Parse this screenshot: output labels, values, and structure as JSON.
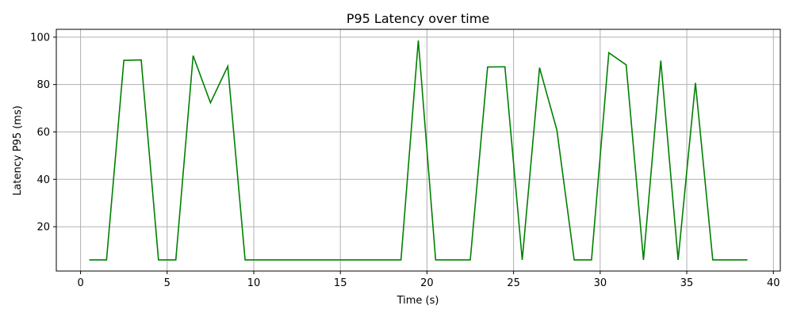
{
  "chart_data": {
    "type": "line",
    "title": "P95 Latency over time",
    "xlabel": "Time (s)",
    "ylabel": "Latency P95 (ms)",
    "xlim": [
      -1.4,
      40.4
    ],
    "ylim": [
      1.3,
      103.3
    ],
    "xticks": [
      0,
      5,
      10,
      15,
      20,
      25,
      30,
      35,
      40
    ],
    "yticks": [
      20,
      40,
      60,
      80,
      100
    ],
    "grid": true,
    "series": [
      {
        "color": "#008000",
        "x": [
          0.5,
          1.5,
          2.5,
          3.5,
          4.5,
          5.5,
          6.5,
          7.5,
          8.5,
          9.5,
          10.5,
          11.5,
          12.5,
          13.5,
          14.5,
          15.5,
          16.5,
          17.5,
          18.5,
          19.5,
          20.5,
          21.5,
          22.5,
          23.5,
          24.5,
          25.5,
          26.5,
          27.5,
          28.5,
          29.5,
          30.5,
          31.5,
          32.5,
          33.5,
          34.5,
          35.5,
          36.5,
          37.5,
          38.5
        ],
        "y": [
          6,
          6,
          90.2,
          90.4,
          6,
          6,
          92.2,
          72.3,
          87.7,
          6,
          6,
          6,
          6,
          6,
          6,
          6,
          6,
          6,
          6,
          98.6,
          6,
          6,
          6,
          87.4,
          87.5,
          6,
          87.1,
          60.8,
          6,
          6,
          93.4,
          88.3,
          6,
          90.1,
          6,
          80.7,
          6,
          6,
          6
        ]
      }
    ]
  }
}
